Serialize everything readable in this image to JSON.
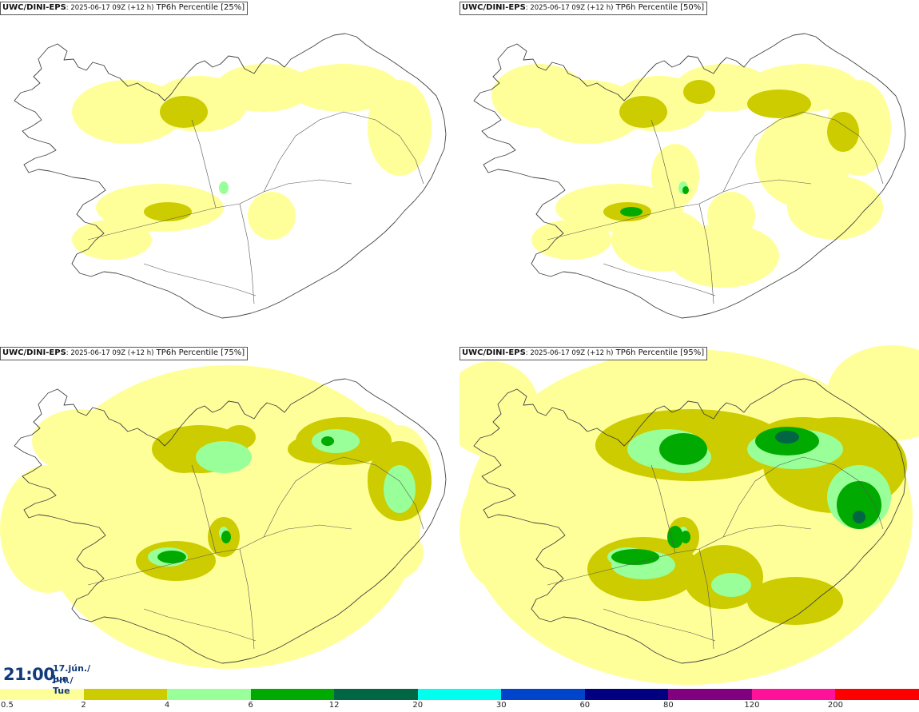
{
  "panels": [
    {
      "model": "UWC/DINI-EPS",
      "run": ": 2025-06-17 09Z (+12 h)",
      "product": " TP6h Percentile [25%]",
      "intensity": 1
    },
    {
      "model": "UWC/DINI-EPS",
      "run": ": 2025-06-17 09Z (+12 h)",
      "product": " TP6h Percentile [50%]",
      "intensity": 2
    },
    {
      "model": "UWC/DINI-EPS",
      "run": ": 2025-06-17 09Z (+12 h)",
      "product": " TP6h Percentile [75%]",
      "intensity": 3
    },
    {
      "model": "UWC/DINI-EPS",
      "run": ": 2025-06-17 09Z (+12 h)",
      "product": " TP6h Percentile [95%]",
      "intensity": 4
    }
  ],
  "valid_time": {
    "hour": "21:00",
    "date_line": "17.jún./ Jun",
    "day_line": "Þri./ Tue"
  },
  "colorbar": {
    "labels": [
      "0.5",
      "2",
      "4",
      "6",
      "12",
      "20",
      "30",
      "60",
      "80",
      "120",
      "200"
    ],
    "colors": [
      "#ffff99",
      "#cccc00",
      "#99ff99",
      "#00aa00",
      "#006644",
      "#00ffee",
      "#0044cc",
      "#000080",
      "#800080",
      "#ff1199",
      "#ff0000"
    ]
  }
}
